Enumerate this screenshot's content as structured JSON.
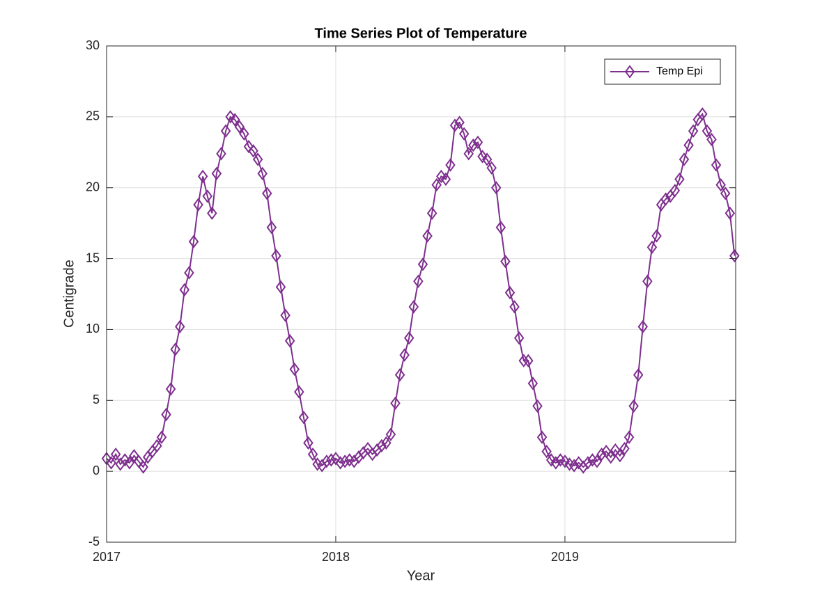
{
  "chart_data": {
    "type": "line",
    "title": "Time Series Plot of Temperature",
    "x_label": "Year",
    "y_label": "Centigrade",
    "x": [
      2017.0,
      2017.02,
      2017.04,
      2017.06,
      2017.08,
      2017.1,
      2017.12,
      2017.14,
      2017.16,
      2017.18,
      2017.2,
      2017.22,
      2017.24,
      2017.26,
      2017.28,
      2017.3,
      2017.32,
      2017.34,
      2017.36,
      2017.38,
      2017.4,
      2017.42,
      2017.44,
      2017.46,
      2017.48,
      2017.5,
      2017.52,
      2017.54,
      2017.56,
      2017.58,
      2017.6,
      2017.62,
      2017.64,
      2017.66,
      2017.68,
      2017.7,
      2017.72,
      2017.74,
      2017.76,
      2017.78,
      2017.8,
      2017.82,
      2017.84,
      2017.86,
      2017.88,
      2017.9,
      2017.92,
      2017.94,
      2017.96,
      2017.98,
      2018.0,
      2018.02,
      2018.04,
      2018.06,
      2018.08,
      2018.1,
      2018.12,
      2018.14,
      2018.16,
      2018.18,
      2018.2,
      2018.22,
      2018.24,
      2018.26,
      2018.28,
      2018.3,
      2018.32,
      2018.34,
      2018.36,
      2018.38,
      2018.4,
      2018.42,
      2018.44,
      2018.46,
      2018.48,
      2018.5,
      2018.52,
      2018.54,
      2018.56,
      2018.58,
      2018.6,
      2018.62,
      2018.64,
      2018.66,
      2018.68,
      2018.7,
      2018.72,
      2018.74,
      2018.76,
      2018.78,
      2018.8,
      2018.82,
      2018.84,
      2018.86,
      2018.88,
      2018.9,
      2018.92,
      2018.94,
      2018.96,
      2018.98,
      2019.0,
      2019.02,
      2019.04,
      2019.06,
      2019.08,
      2019.1,
      2019.12,
      2019.14,
      2019.16,
      2019.18,
      2019.2,
      2019.22,
      2019.24,
      2019.26,
      2019.28,
      2019.3,
      2019.32,
      2019.34,
      2019.36,
      2019.38,
      2019.4,
      2019.42,
      2019.44,
      2019.46,
      2019.48,
      2019.5,
      2019.52,
      2019.54,
      2019.56,
      2019.58,
      2019.6,
      2019.62,
      2019.64,
      2019.66,
      2019.68,
      2019.7,
      2019.72,
      2019.74
    ],
    "series": [
      {
        "name": "Temp Epi",
        "color": "#7e2f8e",
        "marker": "diamond",
        "values": [
          0.9,
          0.6,
          1.2,
          0.5,
          0.8,
          0.6,
          1.1,
          0.7,
          0.3,
          1.0,
          1.4,
          1.8,
          2.4,
          4.0,
          5.8,
          8.6,
          10.2,
          12.8,
          14.0,
          16.2,
          18.8,
          20.8,
          19.4,
          18.2,
          21.0,
          22.4,
          24.0,
          25.0,
          24.8,
          24.3,
          23.8,
          22.9,
          22.6,
          22.0,
          21.0,
          19.6,
          17.2,
          15.2,
          13.0,
          11.0,
          9.2,
          7.2,
          5.6,
          3.8,
          2.0,
          1.2,
          0.5,
          0.4,
          0.7,
          0.8,
          0.9,
          0.6,
          0.7,
          0.8,
          0.7,
          1.0,
          1.3,
          1.6,
          1.2,
          1.5,
          1.8,
          2.0,
          2.6,
          4.8,
          6.8,
          8.2,
          9.4,
          11.6,
          13.4,
          14.6,
          16.6,
          18.2,
          20.2,
          20.8,
          20.6,
          21.6,
          24.4,
          24.6,
          23.8,
          22.4,
          23.0,
          23.2,
          22.2,
          22.0,
          21.4,
          20.0,
          17.2,
          14.8,
          12.6,
          11.6,
          9.4,
          7.8,
          7.8,
          6.2,
          4.6,
          2.4,
          1.4,
          0.8,
          0.6,
          0.8,
          0.7,
          0.5,
          0.4,
          0.6,
          0.3,
          0.6,
          0.8,
          0.7,
          1.2,
          1.4,
          1.0,
          1.5,
          1.1,
          1.6,
          2.4,
          4.6,
          6.8,
          10.2,
          13.4,
          15.8,
          16.6,
          18.8,
          19.2,
          19.4,
          19.8,
          20.6,
          22.0,
          23.0,
          24.0,
          24.8,
          25.2,
          24.0,
          23.4,
          21.6,
          20.2,
          19.6,
          18.2,
          15.2
        ]
      }
    ],
    "xlim": [
      2017,
      2019.745
    ],
    "xticks": [
      2017,
      2018,
      2019
    ],
    "ylim": [
      -5,
      30
    ],
    "yticks": [
      -5,
      0,
      5,
      10,
      15,
      20,
      25,
      30
    ],
    "grid": true,
    "legend": "upper right"
  }
}
